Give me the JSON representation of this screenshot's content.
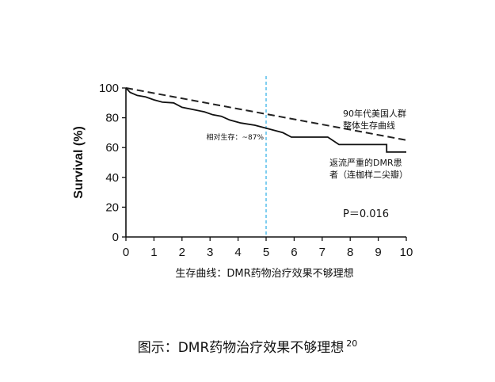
{
  "chart_data": {
    "type": "line",
    "title": "",
    "xlabel": "生存曲线：DMR药物治疗效果不够理想",
    "ylabel": "Survival (%)",
    "xlim": [
      0,
      10
    ],
    "ylim": [
      0,
      100
    ],
    "xticks": [
      0,
      1,
      2,
      3,
      4,
      5,
      6,
      7,
      8,
      9,
      10
    ],
    "yticks": [
      0,
      20,
      40,
      60,
      80,
      100
    ],
    "reference_line_x": 5,
    "series": [
      {
        "line_style": "dashed",
        "color": "#222222",
        "label_lines": [
          "90年代美国人群",
          "整体生存曲线"
        ],
        "points": [
          [
            0,
            100
          ],
          [
            10,
            65
          ]
        ]
      },
      {
        "line_style": "solid-step",
        "color": "#111111",
        "label_lines": [
          "返流严重的DMR患",
          "者（连枷样二尖瓣）"
        ],
        "points": [
          [
            0,
            100
          ],
          [
            0.15,
            97
          ],
          [
            0.4,
            95
          ],
          [
            0.7,
            94
          ],
          [
            1.0,
            92
          ],
          [
            1.3,
            90.5
          ],
          [
            1.7,
            90
          ],
          [
            2.0,
            87
          ],
          [
            2.4,
            85.5
          ],
          [
            2.8,
            84
          ],
          [
            3.1,
            82
          ],
          [
            3.4,
            81
          ],
          [
            3.7,
            78.5
          ],
          [
            4.1,
            76.5
          ],
          [
            4.6,
            75
          ],
          [
            5.0,
            73
          ],
          [
            5.2,
            72
          ],
          [
            5.6,
            70
          ],
          [
            5.9,
            67
          ],
          [
            6.6,
            67
          ],
          [
            7.2,
            67
          ],
          [
            7.6,
            62
          ],
          [
            8.2,
            62
          ],
          [
            9.3,
            62
          ],
          [
            9.3,
            57
          ],
          [
            10,
            57
          ]
        ]
      }
    ],
    "annotations": {
      "survival_at_5": "相对生存：~87%",
      "p_value": "P＝0.016"
    }
  },
  "figure": {
    "caption": "图示：DMR药物治疗效果不够理想",
    "caption_ref": "20"
  }
}
